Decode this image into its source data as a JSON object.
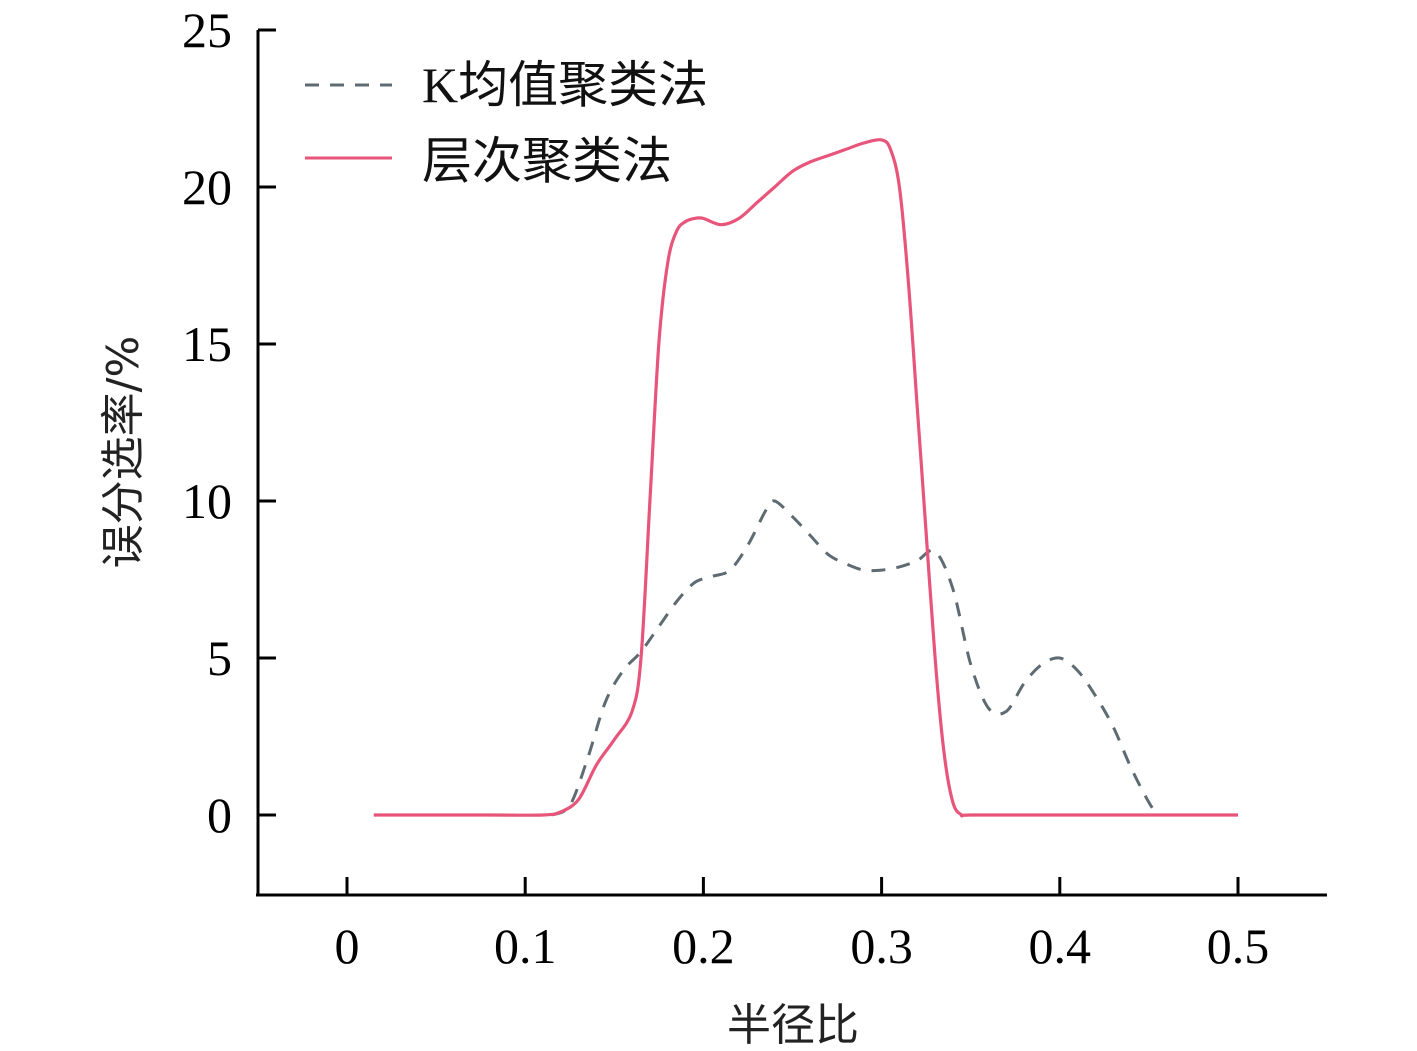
{
  "chart_data": {
    "type": "line",
    "title": "",
    "xlabel": "半径比",
    "ylabel": "误分选率/%",
    "xlim": [
      -0.05,
      0.55
    ],
    "ylim": [
      -2.5,
      25
    ],
    "xticks": [
      0,
      0.1,
      0.2,
      0.3,
      0.4,
      0.5
    ],
    "xtick_labels": [
      "0",
      "0.1",
      "0.2",
      "0.3",
      "0.4",
      "0.5"
    ],
    "yticks": [
      0,
      5,
      10,
      15,
      20,
      25
    ],
    "ytick_labels": [
      "0",
      "5",
      "10",
      "15",
      "20",
      "25"
    ],
    "grid": false,
    "legend_position": "top-left",
    "series": [
      {
        "name": "K均值聚类法",
        "color": "#5f6b73",
        "style": "dashed",
        "x": [
          0.115,
          0.125,
          0.135,
          0.145,
          0.155,
          0.165,
          0.175,
          0.185,
          0.195,
          0.205,
          0.215,
          0.225,
          0.235,
          0.24,
          0.25,
          0.26,
          0.27,
          0.28,
          0.29,
          0.3,
          0.31,
          0.32,
          0.33,
          0.34,
          0.35,
          0.36,
          0.37,
          0.38,
          0.39,
          0.4,
          0.41,
          0.42,
          0.43,
          0.44,
          0.45,
          0.455
        ],
        "y": [
          0.0,
          0.3,
          1.8,
          3.6,
          4.6,
          5.2,
          6.0,
          6.8,
          7.4,
          7.6,
          7.8,
          8.6,
          9.7,
          10.0,
          9.5,
          8.9,
          8.3,
          8.0,
          7.8,
          7.8,
          7.9,
          8.1,
          8.4,
          7.2,
          4.8,
          3.4,
          3.3,
          4.2,
          4.8,
          5.0,
          4.6,
          3.8,
          2.8,
          1.5,
          0.4,
          0.0
        ]
      },
      {
        "name": "层次聚类法",
        "color": "#e8557a",
        "style": "solid",
        "x": [
          0.015,
          0.05,
          0.08,
          0.11,
          0.12,
          0.13,
          0.14,
          0.15,
          0.16,
          0.165,
          0.17,
          0.175,
          0.18,
          0.185,
          0.19,
          0.195,
          0.2,
          0.21,
          0.22,
          0.23,
          0.24,
          0.25,
          0.26,
          0.27,
          0.28,
          0.29,
          0.3,
          0.305,
          0.31,
          0.315,
          0.32,
          0.325,
          0.33,
          0.335,
          0.34,
          0.345,
          0.35,
          0.4,
          0.45,
          0.5
        ],
        "y": [
          0.0,
          0.0,
          0.0,
          0.0,
          0.1,
          0.5,
          1.6,
          2.4,
          3.3,
          5.0,
          10.0,
          15.0,
          17.6,
          18.6,
          18.9,
          19.0,
          19.0,
          18.8,
          19.0,
          19.5,
          20.0,
          20.5,
          20.8,
          21.0,
          21.2,
          21.4,
          21.5,
          21.2,
          20.0,
          17.0,
          13.0,
          9.0,
          5.0,
          2.0,
          0.4,
          0.0,
          0.0,
          0.0,
          0.0,
          0.0
        ]
      }
    ]
  }
}
